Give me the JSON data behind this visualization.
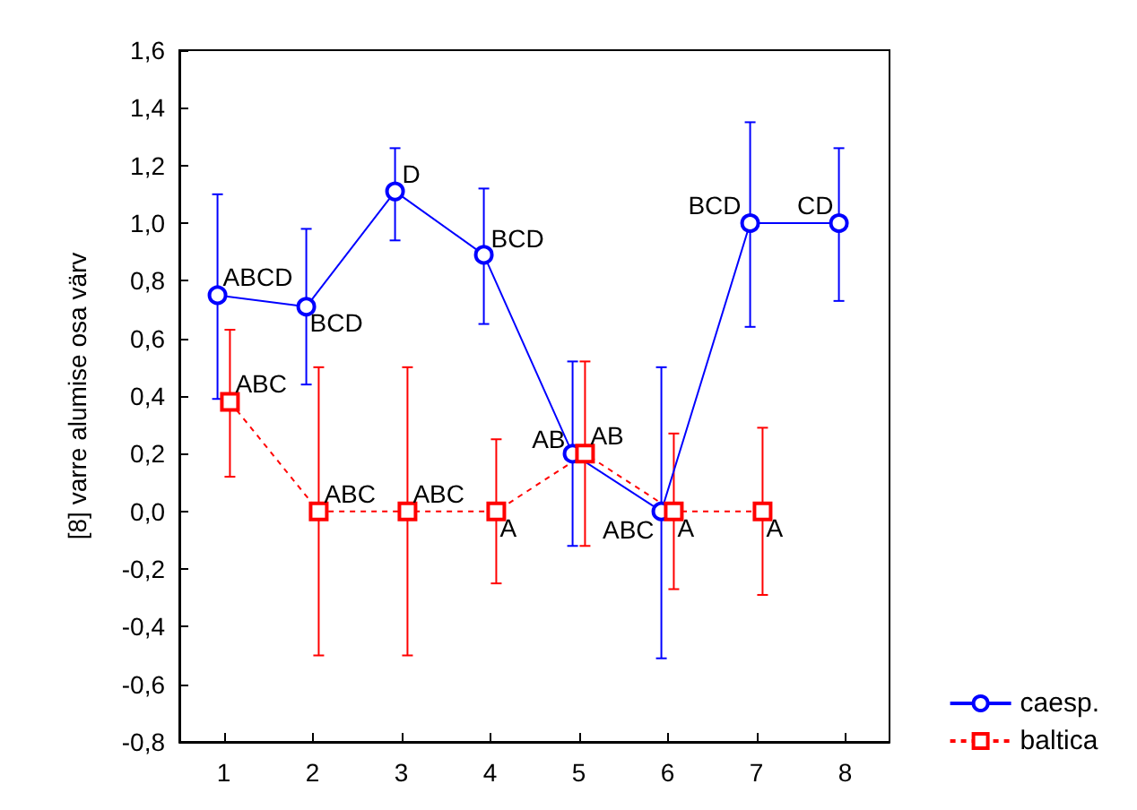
{
  "chart_data": {
    "type": "line",
    "ylabel": "[8] varre alumise osa värv",
    "xlim": [
      0.5,
      8.5
    ],
    "xticks": [
      1,
      2,
      3,
      4,
      5,
      6,
      7,
      8
    ],
    "ylim": [
      -0.8,
      1.6
    ],
    "yticks": [
      {
        "value": -0.8,
        "label": "-0,8"
      },
      {
        "value": -0.6,
        "label": "-0,6"
      },
      {
        "value": -0.4,
        "label": "-0,4"
      },
      {
        "value": -0.2,
        "label": "-0,2"
      },
      {
        "value": 0,
        "label": "0,0"
      },
      {
        "value": 0.2,
        "label": "0,2"
      },
      {
        "value": 0.4,
        "label": "0,4"
      },
      {
        "value": 0.6,
        "label": "0,6"
      },
      {
        "value": 0.8,
        "label": "0,8"
      },
      {
        "value": 1.0,
        "label": "1,0"
      },
      {
        "value": 1.2,
        "label": "1,2"
      },
      {
        "value": 1.4,
        "label": "1,4"
      },
      {
        "value": 1.6,
        "label": "1,6"
      }
    ],
    "grid": false,
    "legend": "bottom right",
    "series": [
      {
        "name": "caesp.",
        "color": "#0000ff",
        "marker": "circle",
        "line_style": "solid",
        "x": [
          0.93,
          1.93,
          2.93,
          3.93,
          4.93,
          5.93,
          6.93,
          7.93
        ],
        "values": [
          0.75,
          0.71,
          1.11,
          0.89,
          0.2,
          0.0,
          1.0,
          1.0
        ],
        "errors": [
          [
            0.39,
            1.1
          ],
          [
            0.44,
            0.98
          ],
          [
            0.94,
            1.26
          ],
          [
            0.65,
            1.12
          ],
          [
            -0.12,
            0.52
          ],
          [
            -0.51,
            0.5
          ],
          [
            0.64,
            1.35
          ],
          [
            0.73,
            1.26
          ]
        ]
      },
      {
        "name": "baltica",
        "color": "#ff0000",
        "marker": "square",
        "line_style": "dashed",
        "x": [
          1.07,
          2.07,
          3.07,
          4.07,
          5.07,
          6.07,
          7.07
        ],
        "values": [
          0.38,
          0.0,
          0.0,
          0.0,
          0.2,
          0.0,
          0.0
        ],
        "errors": [
          [
            0.12,
            0.63
          ],
          [
            -0.5,
            0.5
          ],
          [
            -0.5,
            0.5
          ],
          [
            -0.25,
            0.25
          ],
          [
            -0.12,
            0.52
          ],
          [
            -0.27,
            0.27
          ],
          [
            -0.29,
            0.29
          ]
        ]
      }
    ],
    "annotations": [
      {
        "text": "ABCD",
        "x": 0.93,
        "y": 0.75
      },
      {
        "text": "BCD",
        "x": 1.93,
        "y": 0.71
      },
      {
        "text": "D",
        "x": 2.93,
        "y": 1.11
      },
      {
        "text": "BCD",
        "x": 3.93,
        "y": 0.89
      },
      {
        "text": "AB",
        "x": 4.93,
        "y": 0.2
      },
      {
        "text": "ABC",
        "x": 5.93,
        "y": 0.0
      },
      {
        "text": "BCD",
        "x": 6.93,
        "y": 1.0
      },
      {
        "text": "CD",
        "x": 7.93,
        "y": 1.0
      },
      {
        "text": "ABC",
        "x": 1.07,
        "y": 0.38
      },
      {
        "text": "ABC",
        "x": 2.07,
        "y": 0.0
      },
      {
        "text": "ABC",
        "x": 3.07,
        "y": 0.0
      },
      {
        "text": "A",
        "x": 4.07,
        "y": 0.0
      },
      {
        "text": "AB",
        "x": 5.07,
        "y": 0.2
      },
      {
        "text": "A",
        "x": 6.07,
        "y": 0.0
      },
      {
        "text": "A",
        "x": 7.07,
        "y": 0.0
      }
    ]
  }
}
